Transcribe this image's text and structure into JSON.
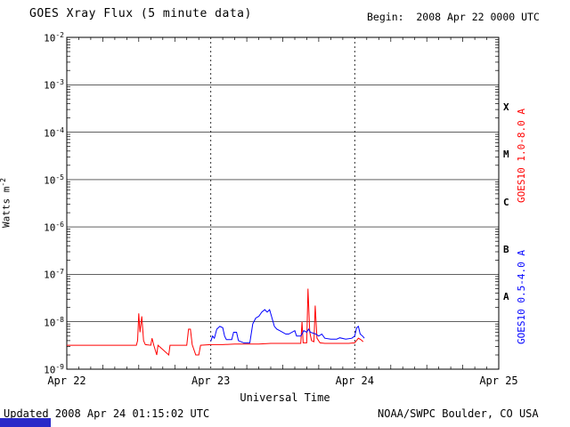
{
  "header": {
    "title": "GOES Xray Flux (5 minute data)",
    "begin_label": "Begin:  2008 Apr 22 0000 UTC"
  },
  "axes": {
    "ylabel_base": "Watts m",
    "ylabel_exp": "-2",
    "xlabel": "Universal Time"
  },
  "footer": {
    "updated": "Updated 2008 Apr 24 01:15:02 UTC",
    "source": "NOAA/SWPC Boulder, CO USA",
    "logo_bar_color": "#2929c8"
  },
  "chart_data": {
    "type": "line",
    "title": "GOES Xray Flux (5 minute data)",
    "xlabel": "Universal Time",
    "ylabel": "Watts m^-2",
    "x_range_hours": [
      0,
      72
    ],
    "x_ticks": [
      {
        "label": "Apr 22",
        "hour": 0
      },
      {
        "label": "Apr 23",
        "hour": 24
      },
      {
        "label": "Apr 24",
        "hour": 48
      },
      {
        "label": "Apr 25",
        "hour": 72
      }
    ],
    "y_exponents": [
      -2,
      -3,
      -4,
      -5,
      -6,
      -7,
      -8,
      -9
    ],
    "day_lines_hours": [
      24,
      48
    ],
    "grid": true,
    "legend_position": "right-rotated",
    "flare_classes": [
      {
        "label": "X",
        "center_exp": -3.5
      },
      {
        "label": "M",
        "center_exp": -4.5
      },
      {
        "label": "C",
        "center_exp": -5.5
      },
      {
        "label": "B",
        "center_exp": -6.5
      },
      {
        "label": "A",
        "center_exp": -7.5
      }
    ],
    "series": [
      {
        "name": "GOES10 1.0-8.0 A",
        "color": "#ff0000",
        "points": [
          [
            0.0,
            3.2e-09
          ],
          [
            2.0,
            3.2e-09
          ],
          [
            4.0,
            3.2e-09
          ],
          [
            6.0,
            3.2e-09
          ],
          [
            8.0,
            3.2e-09
          ],
          [
            10.0,
            3.2e-09
          ],
          [
            11.6,
            3.2e-09
          ],
          [
            11.8,
            4e-09
          ],
          [
            12.0,
            1.5e-08
          ],
          [
            12.2,
            6e-09
          ],
          [
            12.5,
            1.3e-08
          ],
          [
            12.8,
            4e-09
          ],
          [
            13.1,
            3.3e-09
          ],
          [
            14.0,
            3.2e-09
          ],
          [
            14.2,
            4.5e-09
          ],
          [
            14.5,
            3.2e-09
          ],
          [
            15.0,
            2e-09
          ],
          [
            15.2,
            3.2e-09
          ],
          [
            17.0,
            2e-09
          ],
          [
            17.2,
            3.2e-09
          ],
          [
            18.5,
            3.2e-09
          ],
          [
            20.0,
            3.2e-09
          ],
          [
            20.3,
            7e-09
          ],
          [
            20.6,
            7e-09
          ],
          [
            20.9,
            3.3e-09
          ],
          [
            21.5,
            2e-09
          ],
          [
            22.0,
            2e-09
          ],
          [
            22.3,
            3.2e-09
          ],
          [
            24.0,
            3.3e-09
          ],
          [
            26.0,
            3.3e-09
          ],
          [
            28.0,
            3.4e-09
          ],
          [
            30.0,
            3.4e-09
          ],
          [
            32.0,
            3.4e-09
          ],
          [
            34.0,
            3.5e-09
          ],
          [
            36.0,
            3.5e-09
          ],
          [
            38.0,
            3.5e-09
          ],
          [
            39.0,
            3.5e-09
          ],
          [
            39.2,
            1e-08
          ],
          [
            39.4,
            3.6e-09
          ],
          [
            40.0,
            3.6e-09
          ],
          [
            40.2,
            5e-08
          ],
          [
            40.5,
            6e-09
          ],
          [
            40.8,
            4e-09
          ],
          [
            41.2,
            3.8e-09
          ],
          [
            41.4,
            2.2e-08
          ],
          [
            41.7,
            4.5e-09
          ],
          [
            42.2,
            3.6e-09
          ],
          [
            43.0,
            3.5e-09
          ],
          [
            44.0,
            3.5e-09
          ],
          [
            45.0,
            3.5e-09
          ],
          [
            46.0,
            3.5e-09
          ],
          [
            47.0,
            3.5e-09
          ],
          [
            48.0,
            3.6e-09
          ],
          [
            48.6,
            4.5e-09
          ],
          [
            49.0,
            4.2e-09
          ],
          [
            49.4,
            3.8e-09
          ]
        ]
      },
      {
        "name": "GOES10 0.5-4.0 A",
        "color": "#0000ff",
        "points": [
          [
            24.0,
            3.9e-09
          ],
          [
            24.3,
            5e-09
          ],
          [
            24.6,
            4.5e-09
          ],
          [
            25.0,
            7e-09
          ],
          [
            25.5,
            8e-09
          ],
          [
            26.0,
            7.5e-09
          ],
          [
            26.3,
            5e-09
          ],
          [
            26.6,
            4.2e-09
          ],
          [
            27.5,
            4.2e-09
          ],
          [
            27.8,
            6e-09
          ],
          [
            28.3,
            6e-09
          ],
          [
            28.6,
            4e-09
          ],
          [
            29.5,
            3.6e-09
          ],
          [
            30.5,
            3.6e-09
          ],
          [
            31.0,
            9e-09
          ],
          [
            31.5,
            1.2e-08
          ],
          [
            32.0,
            1.3e-08
          ],
          [
            32.5,
            1.6e-08
          ],
          [
            33.0,
            1.8e-08
          ],
          [
            33.4,
            1.6e-08
          ],
          [
            33.8,
            1.8e-08
          ],
          [
            34.2,
            1.2e-08
          ],
          [
            34.6,
            8e-09
          ],
          [
            35.0,
            7e-09
          ],
          [
            35.5,
            6.5e-09
          ],
          [
            36.5,
            5.5e-09
          ],
          [
            37.0,
            5.5e-09
          ],
          [
            38.0,
            6.5e-09
          ],
          [
            38.3,
            5e-09
          ],
          [
            39.0,
            5e-09
          ],
          [
            39.5,
            6.5e-09
          ],
          [
            40.0,
            6e-09
          ],
          [
            40.3,
            7e-09
          ],
          [
            40.6,
            6e-09
          ],
          [
            41.5,
            5.5e-09
          ],
          [
            42.0,
            5e-09
          ],
          [
            42.5,
            5.5e-09
          ],
          [
            43.0,
            4.5e-09
          ],
          [
            44.0,
            4.3e-09
          ],
          [
            45.0,
            4.3e-09
          ],
          [
            45.5,
            4.6e-09
          ],
          [
            46.5,
            4.3e-09
          ],
          [
            47.5,
            4.5e-09
          ],
          [
            48.0,
            5e-09
          ],
          [
            48.3,
            7.5e-09
          ],
          [
            48.6,
            8e-09
          ],
          [
            48.9,
            5.5e-09
          ],
          [
            49.3,
            5e-09
          ],
          [
            49.6,
            4.5e-09
          ]
        ]
      }
    ]
  }
}
